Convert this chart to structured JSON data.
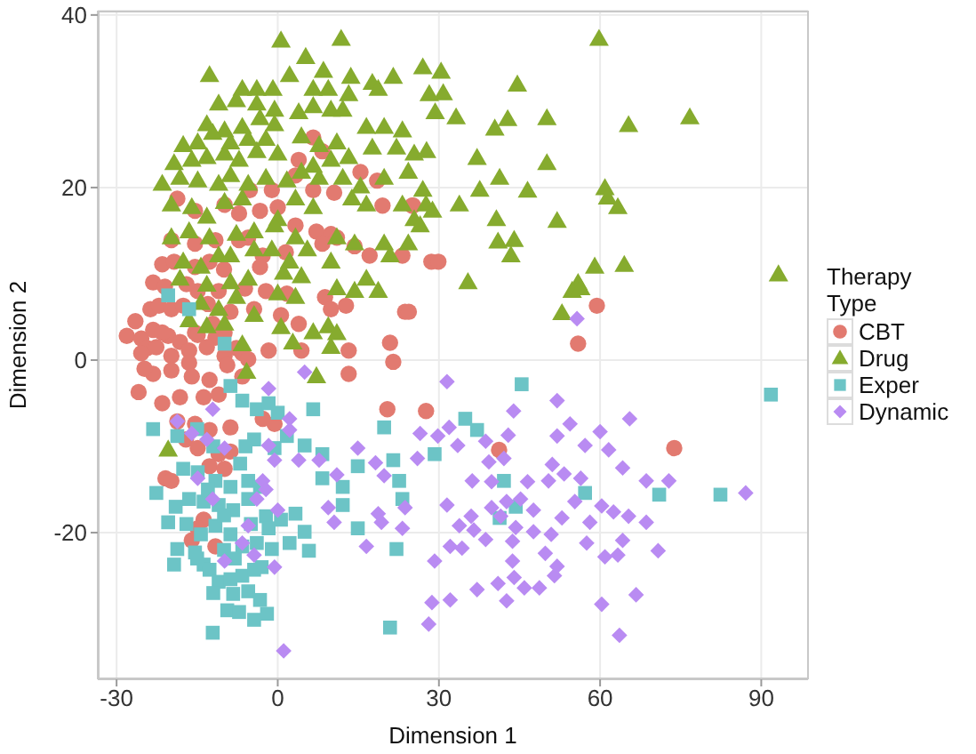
{
  "chart_data": {
    "type": "scatter",
    "xlabel": "Dimension 1",
    "ylabel": "Dimension 2",
    "legend_title": "Therapy Type",
    "xlim": [
      -33.5,
      98.7
    ],
    "ylim": [
      -37,
      40.5
    ],
    "xticks": [
      -30,
      0,
      30,
      60,
      90
    ],
    "yticks": [
      -20,
      0,
      20,
      40
    ],
    "grid": true,
    "legend": "right",
    "series": [
      {
        "name": "CBT",
        "color": "#e27a70",
        "marker": "circle",
        "x": [
          6.6,
          8.3,
          3.9,
          3.3,
          15.4,
          18.5,
          6.6,
          10.5,
          -5.2,
          -1.1,
          -18.7,
          19.5,
          25,
          -15.4,
          -9.9,
          -7.2,
          -3.3,
          0,
          3.3,
          7.2,
          9.9,
          -15.4,
          -11.6,
          -7.2,
          -2.8,
          -3.3,
          8.3,
          11,
          14.3,
          17.1,
          23.2,
          -19.8,
          -21.5,
          -19.3,
          -23.2,
          -15.4,
          -12.7,
          -14.9,
          -11,
          -6.1,
          -2.2,
          1.7,
          8.8,
          9.9,
          12.7,
          23.7,
          -23.7,
          -22.1,
          -19.8,
          -17.6,
          -12.1,
          -8.8,
          -4.4,
          0.6,
          3.9,
          -28.1,
          -25.4,
          -23.2,
          -20.4,
          -18.2,
          -15.4,
          -9.9,
          -7.7,
          -1.7,
          4.4,
          13.2,
          20.9,
          -24.3,
          -16.5,
          -21.5,
          -14.9,
          -11.6,
          -25.4,
          -22.6,
          -19.8,
          -16.5,
          -13.2,
          -9.9,
          -6.6,
          -5.5,
          -25.9,
          -23.2,
          -19.8,
          -16,
          -12.7,
          -9.4,
          -6.6,
          -21.5,
          -18.2,
          -13.8,
          -11,
          -18.7,
          -15.4,
          -12.7,
          -8.8,
          -17.1,
          -14.9,
          -11,
          -8.8,
          -12.7,
          -9.9,
          -20.9,
          -19.8,
          -13.8,
          -14.9,
          -16,
          -11.6,
          -2.8,
          -0.6,
          13.2,
          20.4,
          27.6,
          21.5,
          25.2,
          28.6,
          29.9,
          24.4,
          59.4,
          55.9,
          41.2,
          73.8,
          -26.5,
          -24.8,
          -21,
          -17,
          -13,
          -10,
          -5.5,
          1.5
        ],
        "values": [
          25.8,
          24.2,
          23.2,
          21.4,
          21.8,
          20.8,
          19.7,
          19.4,
          19.7,
          19.7,
          18.7,
          17.9,
          17.9,
          17.3,
          18,
          17,
          17.3,
          17.7,
          15.6,
          14.9,
          14.6,
          13.5,
          13.9,
          13.9,
          12.1,
          10.8,
          13.5,
          14.2,
          13.2,
          12.1,
          12.1,
          13.9,
          11.1,
          11.4,
          9,
          10.8,
          11.4,
          8,
          8,
          8.3,
          8,
          7.7,
          7.3,
          5.9,
          6.3,
          5.6,
          5.9,
          6.3,
          5.9,
          6.3,
          4.2,
          5.6,
          5.9,
          5.2,
          4.2,
          2.8,
          2.5,
          3.5,
          2.8,
          2.1,
          3.2,
          3.2,
          1.4,
          1.1,
          1.1,
          1.1,
          2,
          1.4,
          1.1,
          3.2,
          2.9,
          2.6,
          0.8,
          1.5,
          0.5,
          -0.3,
          1.5,
          0.5,
          0.8,
          0.1,
          -3.7,
          -1.6,
          -1.2,
          -1.9,
          -2.3,
          -0.6,
          -1.9,
          -5,
          -4.3,
          -4.3,
          -4,
          -7.1,
          -7.4,
          -8.1,
          -7.8,
          -9.2,
          -10.2,
          -10.9,
          -10.6,
          -12.3,
          -12.6,
          -13.7,
          -14,
          -18.5,
          -19.5,
          -20.9,
          -21.6,
          -6.8,
          -7.4,
          -1.6,
          -5.7,
          -5.9,
          -0.2,
          17.9,
          11.4,
          11.4,
          5.6,
          6.3,
          1.9,
          -10.4,
          -10.2,
          4.5,
          -1,
          8.5,
          8.8,
          6.5,
          10.5,
          14.2,
          12.5
        ]
      },
      {
        "name": "Drug",
        "color": "#86ab2e",
        "marker": "triangle",
        "x": [
          0.6,
          11.8,
          -12.7,
          5.2,
          2.2,
          8.5,
          13.6,
          17.6,
          21.5,
          27,
          -6.6,
          -3.9,
          -0.9,
          6.6,
          9.4,
          13.2,
          18.7,
          -11,
          -7.7,
          -3.9,
          -0.6,
          3.9,
          6.6,
          9.9,
          12.1,
          -13.2,
          -9.9,
          -6.6,
          -3.3,
          -0.6,
          -17.6,
          -14.9,
          -12.1,
          -8.8,
          -5.5,
          -2.2,
          4.4,
          7.7,
          11,
          13.2,
          16.5,
          19.8,
          23.2,
          -19.3,
          -16,
          -13.2,
          -9.9,
          -7.2,
          -3.9,
          0,
          6.6,
          9.9,
          17.6,
          22.1,
          25.4,
          -21.5,
          -18.2,
          -14.9,
          -11,
          -8.8,
          -5.5,
          -2.2,
          1.7,
          4.4,
          7.7,
          12.1,
          15.4,
          19.8,
          24.3,
          27,
          -19.8,
          -16,
          -13.2,
          -9.9,
          -6.6,
          0,
          3.3,
          6.6,
          13.8,
          16.5,
          23.2,
          25.4,
          27.6,
          -19.8,
          -16.5,
          -12.7,
          -7.7,
          -4.4,
          -0.6,
          3.3,
          11,
          14.3,
          19.8,
          24.3,
          26.5,
          -17.6,
          -14.3,
          -11,
          -8.8,
          -4.4,
          -1.1,
          2.2,
          5.5,
          9.9,
          16.5,
          20.9,
          -18.2,
          -13.2,
          -8.8,
          -5.5,
          1.1,
          4.4,
          11,
          14.3,
          18.7,
          -14.3,
          -11,
          -7.7,
          -4.4,
          0,
          3.3,
          -16.5,
          -13.2,
          -9.9,
          6.6,
          9.4,
          -6.6,
          2.8,
          -5.8,
          7.2,
          9.9,
          11,
          0.6,
          -20.4,
          59.8,
          76.7,
          65.3,
          30.4,
          28.2,
          30.8,
          29.3,
          44.6,
          33.2,
          40.4,
          42.8,
          50.1,
          27.7,
          37.1,
          41.3,
          50.1,
          37.6,
          46.5,
          33.8,
          28.8,
          60.9,
          61.4,
          63.3,
          40.7,
          52,
          41,
          44,
          43.4,
          35.4,
          59,
          64.5,
          55.9,
          54.8,
          56.4,
          52.9,
          93.2
        ],
        "values": [
          37,
          37.2,
          33,
          35.1,
          33,
          33.5,
          32.8,
          32.1,
          32.8,
          33.9,
          31.4,
          31.4,
          31.4,
          31.4,
          31.4,
          30.8,
          31.4,
          29.7,
          30.1,
          29.7,
          29,
          28.7,
          29.4,
          29,
          29,
          27.3,
          26.6,
          27,
          28,
          27.3,
          24.9,
          25.2,
          26.3,
          25.2,
          25.6,
          25.6,
          25.9,
          24.9,
          25.2,
          23.5,
          27,
          27,
          26.6,
          22.8,
          23.2,
          23.5,
          23.9,
          23.2,
          24.2,
          23.9,
          22.5,
          23.2,
          24.6,
          24.6,
          23.9,
          20.4,
          21.1,
          20.8,
          20.4,
          21.4,
          20.4,
          21.1,
          20.8,
          21.8,
          21.1,
          21.1,
          20.1,
          21.1,
          21.8,
          19.7,
          18,
          17.7,
          16.6,
          18.3,
          18.7,
          16.3,
          18.7,
          17.7,
          18.7,
          18,
          18,
          16.3,
          18,
          14.2,
          14.9,
          14.2,
          14.6,
          14.9,
          15.6,
          14.2,
          14.2,
          13.5,
          13.5,
          13.5,
          15.6,
          11.4,
          10.8,
          12.1,
          12.1,
          12.8,
          12.8,
          11.4,
          12.8,
          11.4,
          9.4,
          12.1,
          9.4,
          8.7,
          9,
          9.4,
          10.1,
          9.7,
          8.3,
          8,
          8,
          6.6,
          5.9,
          7.3,
          5.2,
          7.7,
          7.3,
          4.6,
          3.9,
          4.2,
          3.2,
          3.9,
          1.8,
          2,
          -1.4,
          -1.9,
          1.5,
          3.1,
          3.8,
          -10.4,
          37.2,
          28.1,
          27.2,
          33.4,
          30.8,
          30.9,
          28.7,
          31.9,
          28.1,
          26.8,
          27.9,
          28,
          24.2,
          23.4,
          21.1,
          22.8,
          19.7,
          19.6,
          18,
          17.3,
          19.9,
          18.8,
          17.7,
          16.3,
          16.1,
          13.7,
          13.9,
          12.1,
          9,
          10.8,
          11,
          8.9,
          8,
          8.3,
          5.4,
          9.9
        ]
      },
      {
        "name": "Exper",
        "color": "#6cc4c6",
        "marker": "square",
        "x": [
          -23.2,
          -18.7,
          -22.6,
          -20.4,
          -18.7,
          -19.3,
          -15.4,
          -13.8,
          -12.7,
          -11,
          -8.8,
          -6.6,
          -4.4,
          -14.3,
          -11.6,
          -8.8,
          -6.6,
          -3.9,
          -1.1,
          -16.5,
          -13.8,
          -11,
          -8.3,
          -5.5,
          -2.2,
          0.6,
          -17.6,
          -14.9,
          -11.6,
          -8.8,
          -5.5,
          -3.3,
          -12.1,
          -9.4,
          -7.2,
          -4.4,
          -2,
          -8.3,
          -5.5,
          -3.3,
          3.3,
          5,
          2.2,
          -9.9,
          -8.8,
          -6.6,
          -3.9,
          -1.7,
          0,
          -4.4,
          -0.6,
          1.7,
          6.6,
          5,
          8.3,
          8.3,
          12.1,
          14.9,
          14.9,
          12.1,
          20.9,
          19.8,
          21.5,
          22.6,
          23.2,
          22.1,
          29.2,
          5.8,
          -1.7,
          -13,
          -10,
          -7,
          -15,
          -10,
          -5,
          -12,
          -17,
          -19,
          -8,
          -3,
          -6,
          -12,
          -15,
          -20.4,
          -16.5,
          45.4,
          34.9,
          37.1,
          42.1,
          44.3,
          41.3,
          57.2,
          71,
          82.4,
          91.8
        ],
        "values": [
          -8,
          -8.8,
          -15.4,
          -18.8,
          -21.9,
          -23.7,
          -22.3,
          -23.7,
          -24.3,
          -25.7,
          -25.4,
          -25,
          -24.3,
          -20.2,
          -19.2,
          -20.2,
          -21.6,
          -21.2,
          -21.9,
          -16.1,
          -16.4,
          -16.8,
          -17.4,
          -16.1,
          -18.1,
          -18.5,
          -12.6,
          -13,
          -14,
          -14.7,
          -14,
          -14.7,
          -31.6,
          -29,
          -29.2,
          -30.1,
          -29.4,
          -27.1,
          -26.8,
          -27.8,
          -17.8,
          -19.9,
          -21.2,
          1.9,
          -3,
          -4.7,
          -5.7,
          -5,
          -6.1,
          -9.2,
          -10.2,
          -8.8,
          -5.7,
          -9.9,
          -10.9,
          -13.7,
          -14.7,
          -12.3,
          -19.5,
          -16.8,
          -31,
          -7.8,
          -11.6,
          -14,
          -16.1,
          -21.9,
          -10.9,
          -22.1,
          -19.5,
          -15,
          -18,
          -12,
          -23,
          -22,
          -19,
          -27,
          -19,
          -17,
          -23,
          -24,
          -10,
          -10,
          -8,
          7.5,
          5.9,
          -2.8,
          -6.8,
          -8.1,
          -14,
          -17,
          -18.3,
          -15.4,
          -15.6,
          -15.6,
          -4
        ]
      },
      {
        "name": "Dynamic",
        "color": "#b98bf2",
        "marker": "diamond",
        "x": [
          -1.7,
          5,
          2.2,
          2.2,
          -1.7,
          -0.6,
          3.9,
          7.7,
          11,
          14.9,
          18.2,
          19.8,
          -2.8,
          -2.2,
          -3.9,
          -5.5,
          -6.6,
          -4.4,
          0,
          9.4,
          10.5,
          16.5,
          18.7,
          19.3,
          23.2,
          23.7,
          26.5,
          29.8,
          28.7,
          28.1,
          29.2,
          1.1,
          -0.6,
          -9.9,
          -18.7,
          -16,
          -13.2,
          -9.9,
          -12.1,
          -14.9,
          -12.1,
          31.5,
          52,
          43.9,
          54.4,
          65.5,
          60,
          31.9,
          33.5,
          38.7,
          42.9,
          52,
          57.2,
          61.6,
          26,
          39.3,
          42.1,
          51.1,
          53.3,
          56.4,
          64.2,
          68.6,
          72.8,
          36.2,
          39.8,
          46.5,
          50.4,
          31.5,
          36,
          39.8,
          42.6,
          45.2,
          47.6,
          52.9,
          55.3,
          60.3,
          62.5,
          65.3,
          68.6,
          33.8,
          36.5,
          38.7,
          41.5,
          44.3,
          47.6,
          50.9,
          58.1,
          32.1,
          34.3,
          43.7,
          49.8,
          57.5,
          64.2,
          70.8,
          43.7,
          52,
          60.9,
          63.3,
          41,
          44,
          45.9,
          51.5,
          48.7,
          37.1,
          32.1,
          42.6,
          60.3,
          66.7,
          63.6,
          87.1,
          55.7
        ],
        "values": [
          -3.3,
          -1.4,
          -6.8,
          -8.1,
          -9.9,
          -11.6,
          -11.6,
          -11.6,
          -13.3,
          -10.2,
          -11.9,
          -13.4,
          -14,
          -15,
          -16.1,
          -19.2,
          -21.2,
          -22.6,
          -17.4,
          -17.1,
          -18.8,
          -21.6,
          -17.8,
          -18.8,
          -19.5,
          -17.1,
          -8.5,
          -8.8,
          -28.1,
          -30.6,
          -23.3,
          -33.7,
          -24,
          -23.3,
          -7.1,
          -8.5,
          -9.2,
          -10.2,
          -5.7,
          -13.7,
          -16.1,
          -2.5,
          -4.7,
          -5.9,
          -7.4,
          -6.8,
          -8.3,
          -7.8,
          -9.9,
          -9.4,
          -8.7,
          -8.8,
          -9.9,
          -10.4,
          -11.4,
          -11.8,
          -11.4,
          -12.1,
          -13.2,
          -13.7,
          -12.5,
          -14,
          -14,
          -14,
          -14.1,
          -14.1,
          -14,
          -16.8,
          -18.1,
          -17.1,
          -16.4,
          -16.1,
          -17.4,
          -18.3,
          -16.4,
          -16.9,
          -17.6,
          -18.1,
          -18.8,
          -19.2,
          -19.7,
          -20.8,
          -18.1,
          -19.4,
          -19.9,
          -20.2,
          -18.8,
          -21.6,
          -21.8,
          -21,
          -22.4,
          -21.2,
          -20.9,
          -22.1,
          -23.3,
          -23.9,
          -22.8,
          -22.6,
          -25.9,
          -25.2,
          -26.4,
          -25,
          -26.4,
          -26.6,
          -27.8,
          -27.9,
          -28.3,
          -27.2,
          -31.9,
          -15.4,
          4.8
        ]
      }
    ]
  }
}
